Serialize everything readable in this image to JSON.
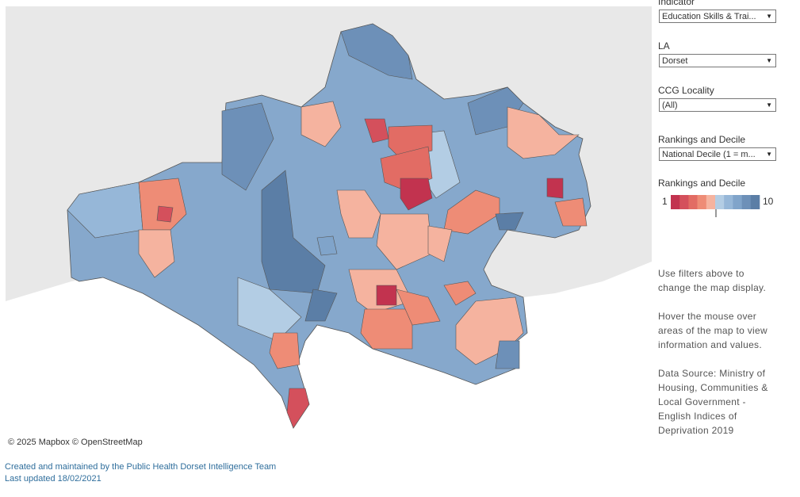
{
  "filters": [
    {
      "label": "Indicator",
      "value": "Education Skills & Trai..."
    },
    {
      "label": "LA",
      "value": "Dorset"
    },
    {
      "label": "CCG Locality",
      "value": "(All)"
    },
    {
      "label": "Rankings and Decile",
      "value": "National Decile (1 = m..."
    }
  ],
  "legend": {
    "title": "Rankings and Decile",
    "min_label": 1,
    "max_label": 10,
    "colors": [
      "#c2334f",
      "#d4505c",
      "#e26c64",
      "#ee8c76",
      "#f5b39f",
      "#b3cde4",
      "#96b7d8",
      "#80a4ca",
      "#6d90b8",
      "#5b7ea6"
    ]
  },
  "attribution": "© 2025 Mapbox © OpenStreetMap",
  "notes": [
    "Use filters above to change the map display.",
    "Hover the mouse over areas of the map to view information and values.",
    "Data Source: Ministry of Housing, Communities & Local Government - English Indices of Deprivation 2019"
  ],
  "footer": [
    "Created and maintained by the Public Health Dorset Intelligence Team",
    "Last updated 18/02/2021"
  ]
}
